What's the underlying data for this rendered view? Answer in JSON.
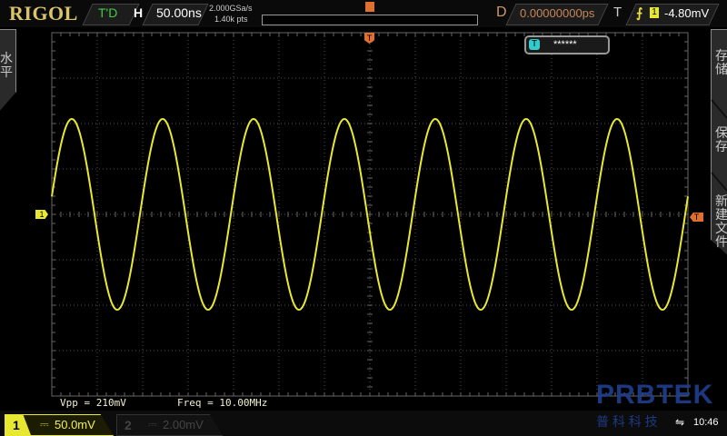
{
  "header": {
    "brand": "RIGOL",
    "run_status": "T'D",
    "horizontal_label": "H",
    "timebase": "50.00ns",
    "sample_rate": "2.000GSa/s",
    "memory_depth": "1.40k pts",
    "delay_label": "D",
    "delay": "0.00000000ps",
    "trigger_label": "T",
    "trigger_source": "1",
    "trigger_level": "-4.80mV",
    "trigger_edge_icon": "rising-edge-icon"
  },
  "left_menu": {
    "label": "水平"
  },
  "right_menu": {
    "items": [
      "存储",
      "保存",
      "新建文件"
    ]
  },
  "notification": {
    "icon": "T",
    "text": "******"
  },
  "markers": {
    "channel1": "1",
    "trigger": "T"
  },
  "measurements": {
    "vpp": "Vpp = 210mV",
    "freq": "Freq = 10.00MHz"
  },
  "channels": [
    {
      "number": "1",
      "coupling": "⎓",
      "scale": "50.0mV",
      "active": true,
      "color": "#f0f020"
    },
    {
      "number": "2",
      "coupling": "⎓",
      "scale": "2.00mV",
      "active": false,
      "color": "#555555"
    }
  ],
  "status": {
    "usb_icon": "usb-icon",
    "time": "10:46"
  },
  "watermark": {
    "text": "PRBTEK",
    "sub": "普 科 科 技"
  },
  "chart_data": {
    "type": "line",
    "series": [
      {
        "waveform": "sine",
        "frequency_hz": 10000000,
        "vpp_mv": 210,
        "offset_mv": 0
      }
    ],
    "time_per_div_ns": 50,
    "volts_per_div_mv": 50,
    "divisions_x": 14,
    "divisions_y": 8,
    "grid": true,
    "trace_color": "#e8e830"
  }
}
